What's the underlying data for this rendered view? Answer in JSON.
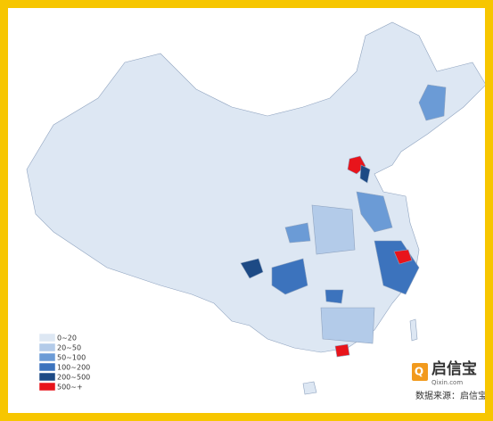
{
  "legend": {
    "items": [
      {
        "label": "0~20",
        "color": "#dde7f3"
      },
      {
        "label": "20~50",
        "color": "#b3cbe9"
      },
      {
        "label": "50~100",
        "color": "#6b9bd6"
      },
      {
        "label": "100~200",
        "color": "#3c73bd"
      },
      {
        "label": "200~500",
        "color": "#1d4a85"
      },
      {
        "label": "500~+",
        "color": "#e8141b"
      }
    ]
  },
  "brand": {
    "name": "启信宝",
    "domain": "Qixin.com"
  },
  "source": "数据来源：启信宝"
}
